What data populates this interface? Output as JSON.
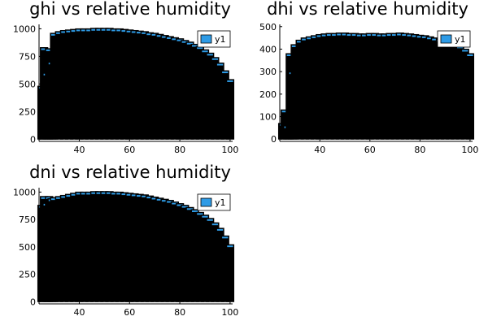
{
  "colors": {
    "series_fill": "#2e9be6",
    "bar_stroke": "#000000",
    "background": "#ffffff",
    "axis": "#000000"
  },
  "chart_data": [
    {
      "type": "bar",
      "title": "ghi vs relative humidity",
      "xlabel": "",
      "ylabel": "",
      "xlim": [
        24,
        101
      ],
      "ylim": [
        -20,
        1040
      ],
      "xticks": [
        40,
        60,
        80,
        100
      ],
      "xtick_labels": [
        "40",
        "60",
        "80",
        "100"
      ],
      "yticks": [
        0,
        250,
        500,
        750,
        1000
      ],
      "ytick_labels": [
        "0",
        "250",
        "500",
        "750",
        "1000"
      ],
      "grid": false,
      "legend": {
        "position": "top-right",
        "entries": [
          "y1"
        ]
      },
      "x": [
        25,
        26,
        27,
        28,
        29,
        30,
        32,
        34,
        36,
        38,
        40,
        42,
        44,
        46,
        48,
        50,
        52,
        54,
        56,
        58,
        60,
        62,
        64,
        66,
        68,
        70,
        72,
        74,
        76,
        78,
        80,
        82,
        84,
        86,
        88,
        90,
        92,
        94,
        96,
        98,
        100
      ],
      "series": [
        {
          "values": [
            480,
            830,
            600,
            820,
            700,
            960,
            975,
            985,
            990,
            995,
            1000,
            1000,
            1000,
            1005,
            1005,
            1005,
            1005,
            1000,
            1000,
            995,
            990,
            985,
            980,
            975,
            965,
            960,
            950,
            940,
            930,
            920,
            910,
            895,
            880,
            860,
            840,
            810,
            780,
            740,
            690,
            620,
            540
          ]
        }
      ]
    },
    {
      "type": "bar",
      "title": "dhi vs relative humidity",
      "xlabel": "",
      "ylabel": "",
      "xlim": [
        24,
        101
      ],
      "ylim": [
        -10,
        510
      ],
      "xticks": [
        40,
        60,
        80,
        100
      ],
      "xtick_labels": [
        "40",
        "60",
        "80",
        "100"
      ],
      "yticks": [
        0,
        100,
        200,
        300,
        400,
        500
      ],
      "ytick_labels": [
        "0",
        "100",
        "200",
        "300",
        "400",
        "500"
      ],
      "grid": false,
      "legend": {
        "position": "top-right",
        "entries": [
          "y1"
        ]
      },
      "x": [
        25,
        26,
        27,
        28,
        29,
        30,
        32,
        34,
        36,
        38,
        40,
        42,
        44,
        46,
        48,
        50,
        52,
        54,
        56,
        58,
        60,
        62,
        64,
        66,
        68,
        70,
        72,
        74,
        76,
        78,
        80,
        82,
        84,
        86,
        88,
        90,
        92,
        94,
        96,
        98,
        100
      ],
      "series": [
        {
          "values": [
            70,
            130,
            60,
            380,
            300,
            420,
            440,
            450,
            455,
            460,
            465,
            468,
            470,
            470,
            472,
            472,
            470,
            470,
            468,
            468,
            470,
            470,
            468,
            468,
            470,
            470,
            472,
            470,
            468,
            465,
            462,
            460,
            455,
            450,
            445,
            440,
            432,
            425,
            415,
            400,
            380
          ]
        }
      ]
    },
    {
      "type": "bar",
      "title": "dni vs relative humidity",
      "xlabel": "",
      "ylabel": "",
      "xlim": [
        24,
        101
      ],
      "ylim": [
        -20,
        1040
      ],
      "xticks": [
        40,
        60,
        80,
        100
      ],
      "xtick_labels": [
        "40",
        "60",
        "80",
        "100"
      ],
      "yticks": [
        0,
        250,
        500,
        750,
        1000
      ],
      "ytick_labels": [
        "0",
        "250",
        "500",
        "750",
        "1000"
      ],
      "grid": false,
      "legend": {
        "position": "top-right",
        "entries": [
          "y1"
        ]
      },
      "x": [
        25,
        26,
        27,
        28,
        29,
        30,
        32,
        34,
        36,
        38,
        40,
        42,
        44,
        46,
        48,
        50,
        52,
        54,
        56,
        58,
        60,
        62,
        64,
        66,
        68,
        70,
        72,
        74,
        76,
        78,
        80,
        82,
        84,
        86,
        88,
        90,
        92,
        94,
        96,
        98,
        100
      ],
      "series": [
        {
          "values": [
            880,
            960,
            900,
            960,
            940,
            950,
            960,
            970,
            980,
            990,
            1000,
            1000,
            1000,
            1005,
            1005,
            1005,
            1005,
            1000,
            1000,
            995,
            990,
            985,
            980,
            975,
            965,
            955,
            945,
            935,
            925,
            910,
            895,
            880,
            860,
            840,
            815,
            790,
            760,
            720,
            670,
            600,
            520
          ]
        }
      ]
    }
  ]
}
